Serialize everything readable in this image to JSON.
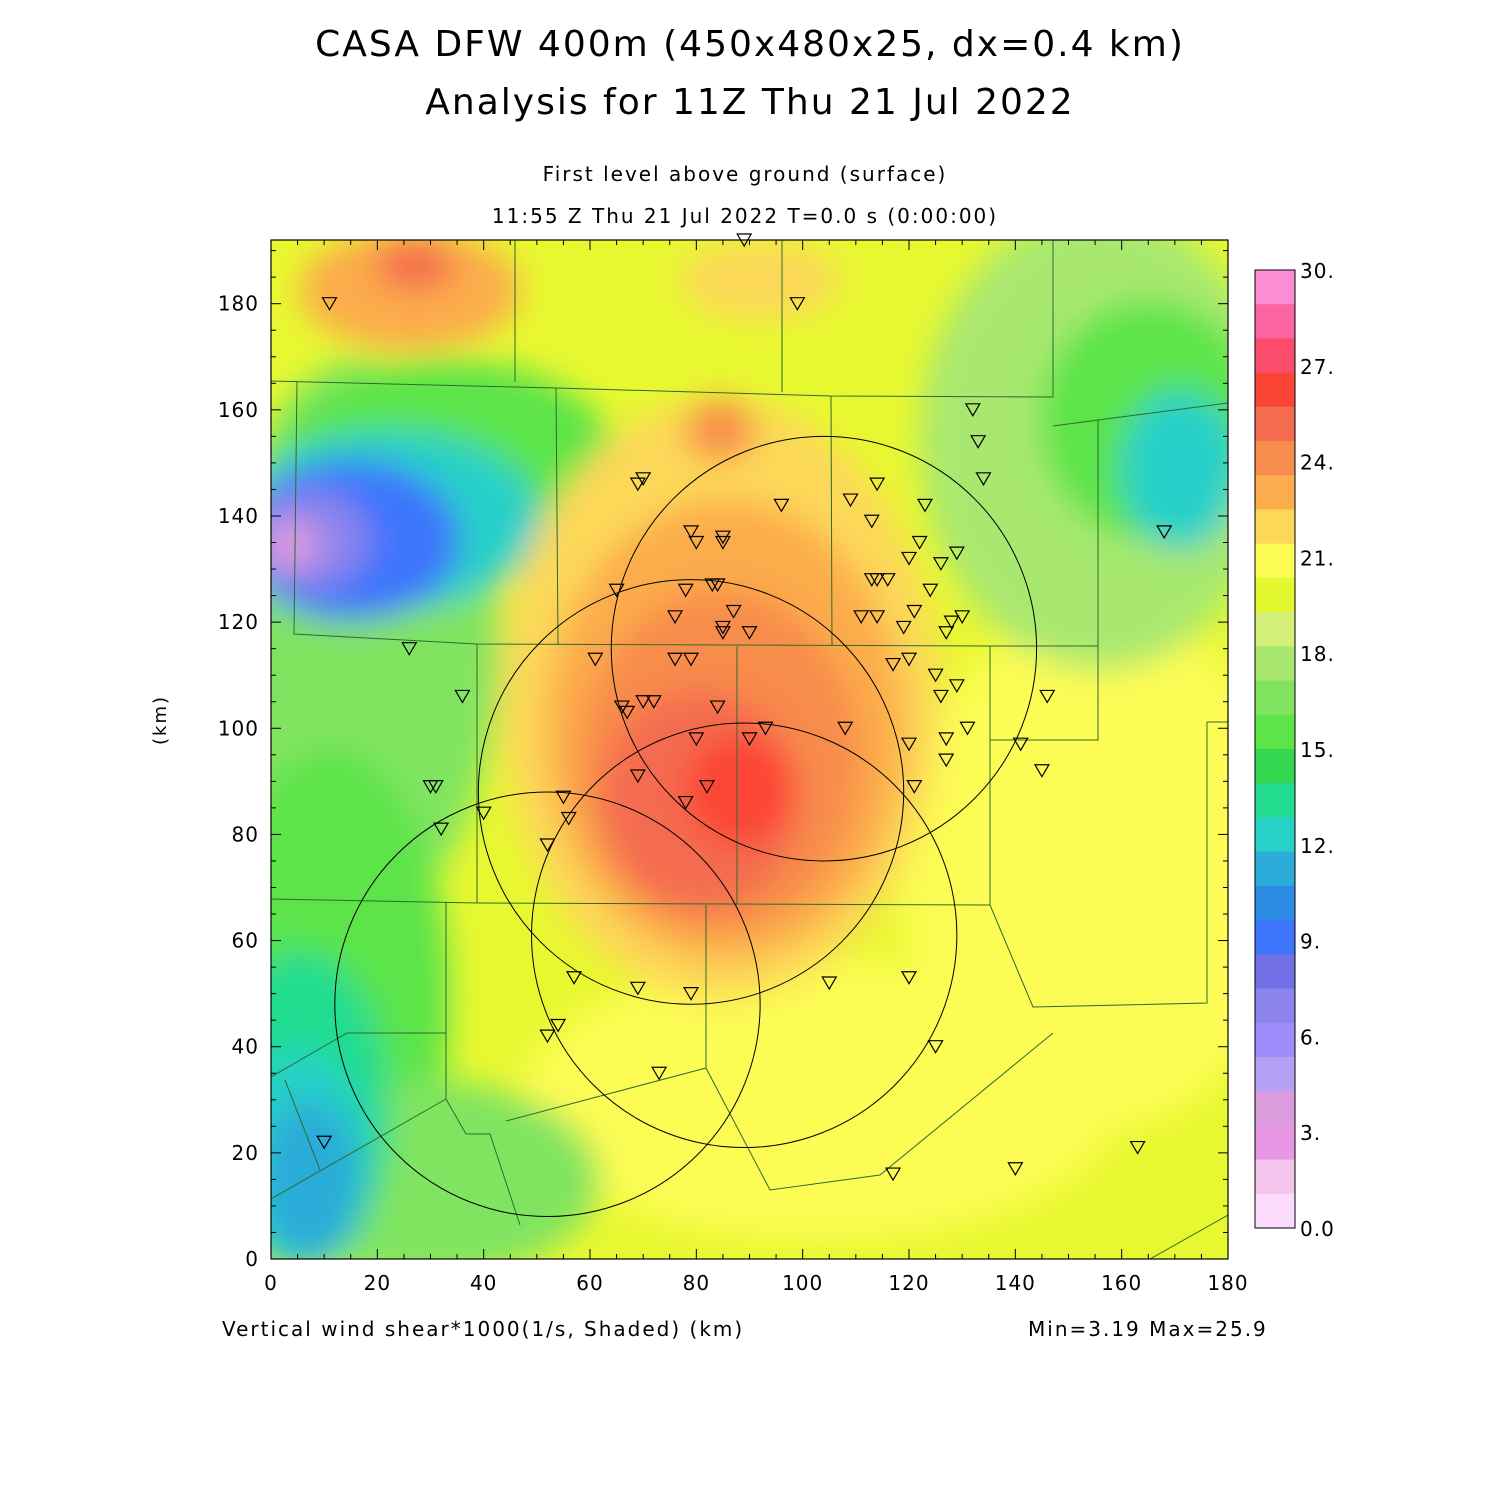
{
  "title": "CASA DFW 400m (450x480x25, dx=0.4 km)",
  "subtitle": "Analysis for 11Z Thu 21 Jul 2022",
  "level_label": "First level above ground (surface)",
  "time_label": "11:55 Z Thu 21 Jul 2022   T=0.0 s (0:00:00)",
  "field_label": "Vertical wind shear*1000(1/s, Shaded)  (km)",
  "minmax_label": "Min=3.19 Max=25.9",
  "y_axis_label": "(km)",
  "chart_data": {
    "type": "heatmap",
    "title": "CASA DFW 400m (450x480x25, dx=0.4 km)",
    "xlabel": "(km)",
    "ylabel": "(km)",
    "xlim": [
      0,
      180
    ],
    "ylim": [
      0,
      192
    ],
    "x_ticks": [
      "0",
      "20",
      "40",
      "60",
      "80",
      "100",
      "120",
      "140",
      "160",
      "180"
    ],
    "y_ticks": [
      "0",
      "20",
      "40",
      "60",
      "80",
      "100",
      "120",
      "140",
      "160",
      "180"
    ],
    "colorbar": {
      "ticks": [
        "0.0",
        "3.",
        "6.",
        "9.",
        "12.",
        "15.",
        "18.",
        "21.",
        "24.",
        "27.",
        "30."
      ],
      "range": [
        0,
        30
      ],
      "levels": 18,
      "colors": [
        "#fcdcfc",
        "#f4c4ec",
        "#e897e4",
        "#dc9bdc",
        "#b4a0f4",
        "#9c8cfc",
        "#8c84ec",
        "#7070e4",
        "#3c74fc",
        "#2c8ce4",
        "#2cacd8",
        "#28d0c8",
        "#24dc90",
        "#34d850",
        "#5ce448",
        "#80e460",
        "#a8e870",
        "#d4f078",
        "#e4f830",
        "#fcfc54",
        "#fcd858",
        "#fcac4c",
        "#f88c4c",
        "#f46c50",
        "#fc4434",
        "#fc4c6c",
        "#fc64a4",
        "#fc8cd4"
      ]
    },
    "min": 3.19,
    "max": 25.9,
    "radar_ranges_center_km": [
      {
        "x": 104,
        "y": 115,
        "r": 40
      },
      {
        "x": 79,
        "y": 88,
        "r": 40
      },
      {
        "x": 89,
        "y": 61,
        "r": 40
      },
      {
        "x": 52,
        "y": 48,
        "r": 40
      }
    ],
    "stations_km": [
      [
        11,
        180
      ],
      [
        89,
        192
      ],
      [
        99,
        180
      ],
      [
        132,
        160
      ],
      [
        133,
        154
      ],
      [
        134,
        147
      ],
      [
        70,
        147
      ],
      [
        69,
        146
      ],
      [
        96,
        142
      ],
      [
        109,
        143
      ],
      [
        114,
        146
      ],
      [
        123,
        142
      ],
      [
        113,
        139
      ],
      [
        79,
        137
      ],
      [
        80,
        135
      ],
      [
        85,
        136
      ],
      [
        85,
        135
      ],
      [
        122,
        135
      ],
      [
        129,
        133
      ],
      [
        126,
        131
      ],
      [
        120,
        132
      ],
      [
        65,
        126
      ],
      [
        78,
        126
      ],
      [
        83,
        127
      ],
      [
        84,
        127
      ],
      [
        113,
        128
      ],
      [
        114,
        128
      ],
      [
        116,
        128
      ],
      [
        124,
        126
      ],
      [
        87,
        122
      ],
      [
        121,
        122
      ],
      [
        111,
        121
      ],
      [
        114,
        121
      ],
      [
        76,
        121
      ],
      [
        85,
        119
      ],
      [
        85,
        118
      ],
      [
        90,
        118
      ],
      [
        119,
        119
      ],
      [
        128,
        120
      ],
      [
        130,
        121
      ],
      [
        127,
        118
      ],
      [
        26,
        115
      ],
      [
        61,
        113
      ],
      [
        76,
        113
      ],
      [
        79,
        113
      ],
      [
        117,
        112
      ],
      [
        120,
        113
      ],
      [
        125,
        110
      ],
      [
        129,
        108
      ],
      [
        126,
        106
      ],
      [
        146,
        106
      ],
      [
        36,
        106
      ],
      [
        66,
        104
      ],
      [
        67,
        103
      ],
      [
        70,
        105
      ],
      [
        72,
        105
      ],
      [
        84,
        104
      ],
      [
        108,
        100
      ],
      [
        93,
        100
      ],
      [
        80,
        98
      ],
      [
        90,
        98
      ],
      [
        131,
        100
      ],
      [
        127,
        98
      ],
      [
        120,
        97
      ],
      [
        141,
        97
      ],
      [
        127,
        94
      ],
      [
        30,
        89
      ],
      [
        31,
        89
      ],
      [
        69,
        91
      ],
      [
        82,
        89
      ],
      [
        121,
        89
      ],
      [
        145,
        92
      ],
      [
        78,
        86
      ],
      [
        55,
        87
      ],
      [
        40,
        84
      ],
      [
        32,
        81
      ],
      [
        56,
        83
      ],
      [
        52,
        78
      ],
      [
        57,
        53
      ],
      [
        69,
        51
      ],
      [
        79,
        50
      ],
      [
        105,
        52
      ],
      [
        120,
        53
      ],
      [
        52,
        42
      ],
      [
        54,
        44
      ],
      [
        125,
        40
      ],
      [
        73,
        35
      ],
      [
        10,
        22
      ],
      [
        117,
        16
      ],
      [
        140,
        17
      ],
      [
        163,
        21
      ],
      [
        168,
        137
      ]
    ]
  }
}
